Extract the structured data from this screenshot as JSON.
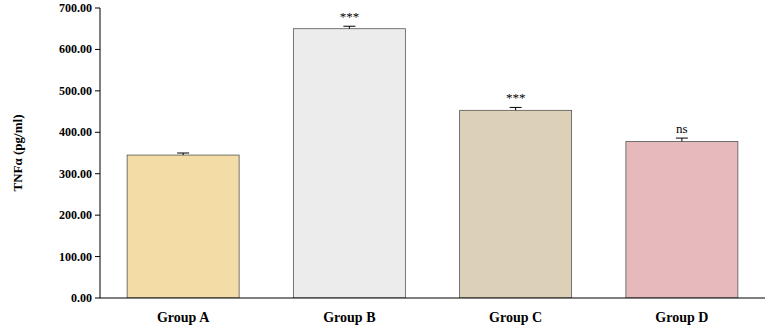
{
  "chart_data": {
    "type": "bar",
    "y_label": "TNFα (pg/ml)",
    "categories": [
      "Group A",
      "Group B",
      "Group C",
      "Group D"
    ],
    "values": [
      345,
      650,
      453,
      378
    ],
    "errors": [
      5,
      6,
      7,
      8
    ],
    "significance": [
      null,
      "***",
      "***",
      "ns"
    ],
    "colors": [
      "#f3dca6",
      "#ececec",
      "#dcd0b8",
      "#e6b9bd"
    ],
    "ylim": [
      0,
      700
    ],
    "yticks": [
      {
        "value": 0,
        "label": "0.00"
      },
      {
        "value": 100,
        "label": "100.00"
      },
      {
        "value": 200,
        "label": "200.00"
      },
      {
        "value": 300,
        "label": "300.00"
      },
      {
        "value": 400,
        "label": "400.00"
      },
      {
        "value": 500,
        "label": "500.00"
      },
      {
        "value": 600,
        "label": "600.00"
      },
      {
        "value": 700,
        "label": "700.00"
      }
    ],
    "grid": false
  }
}
